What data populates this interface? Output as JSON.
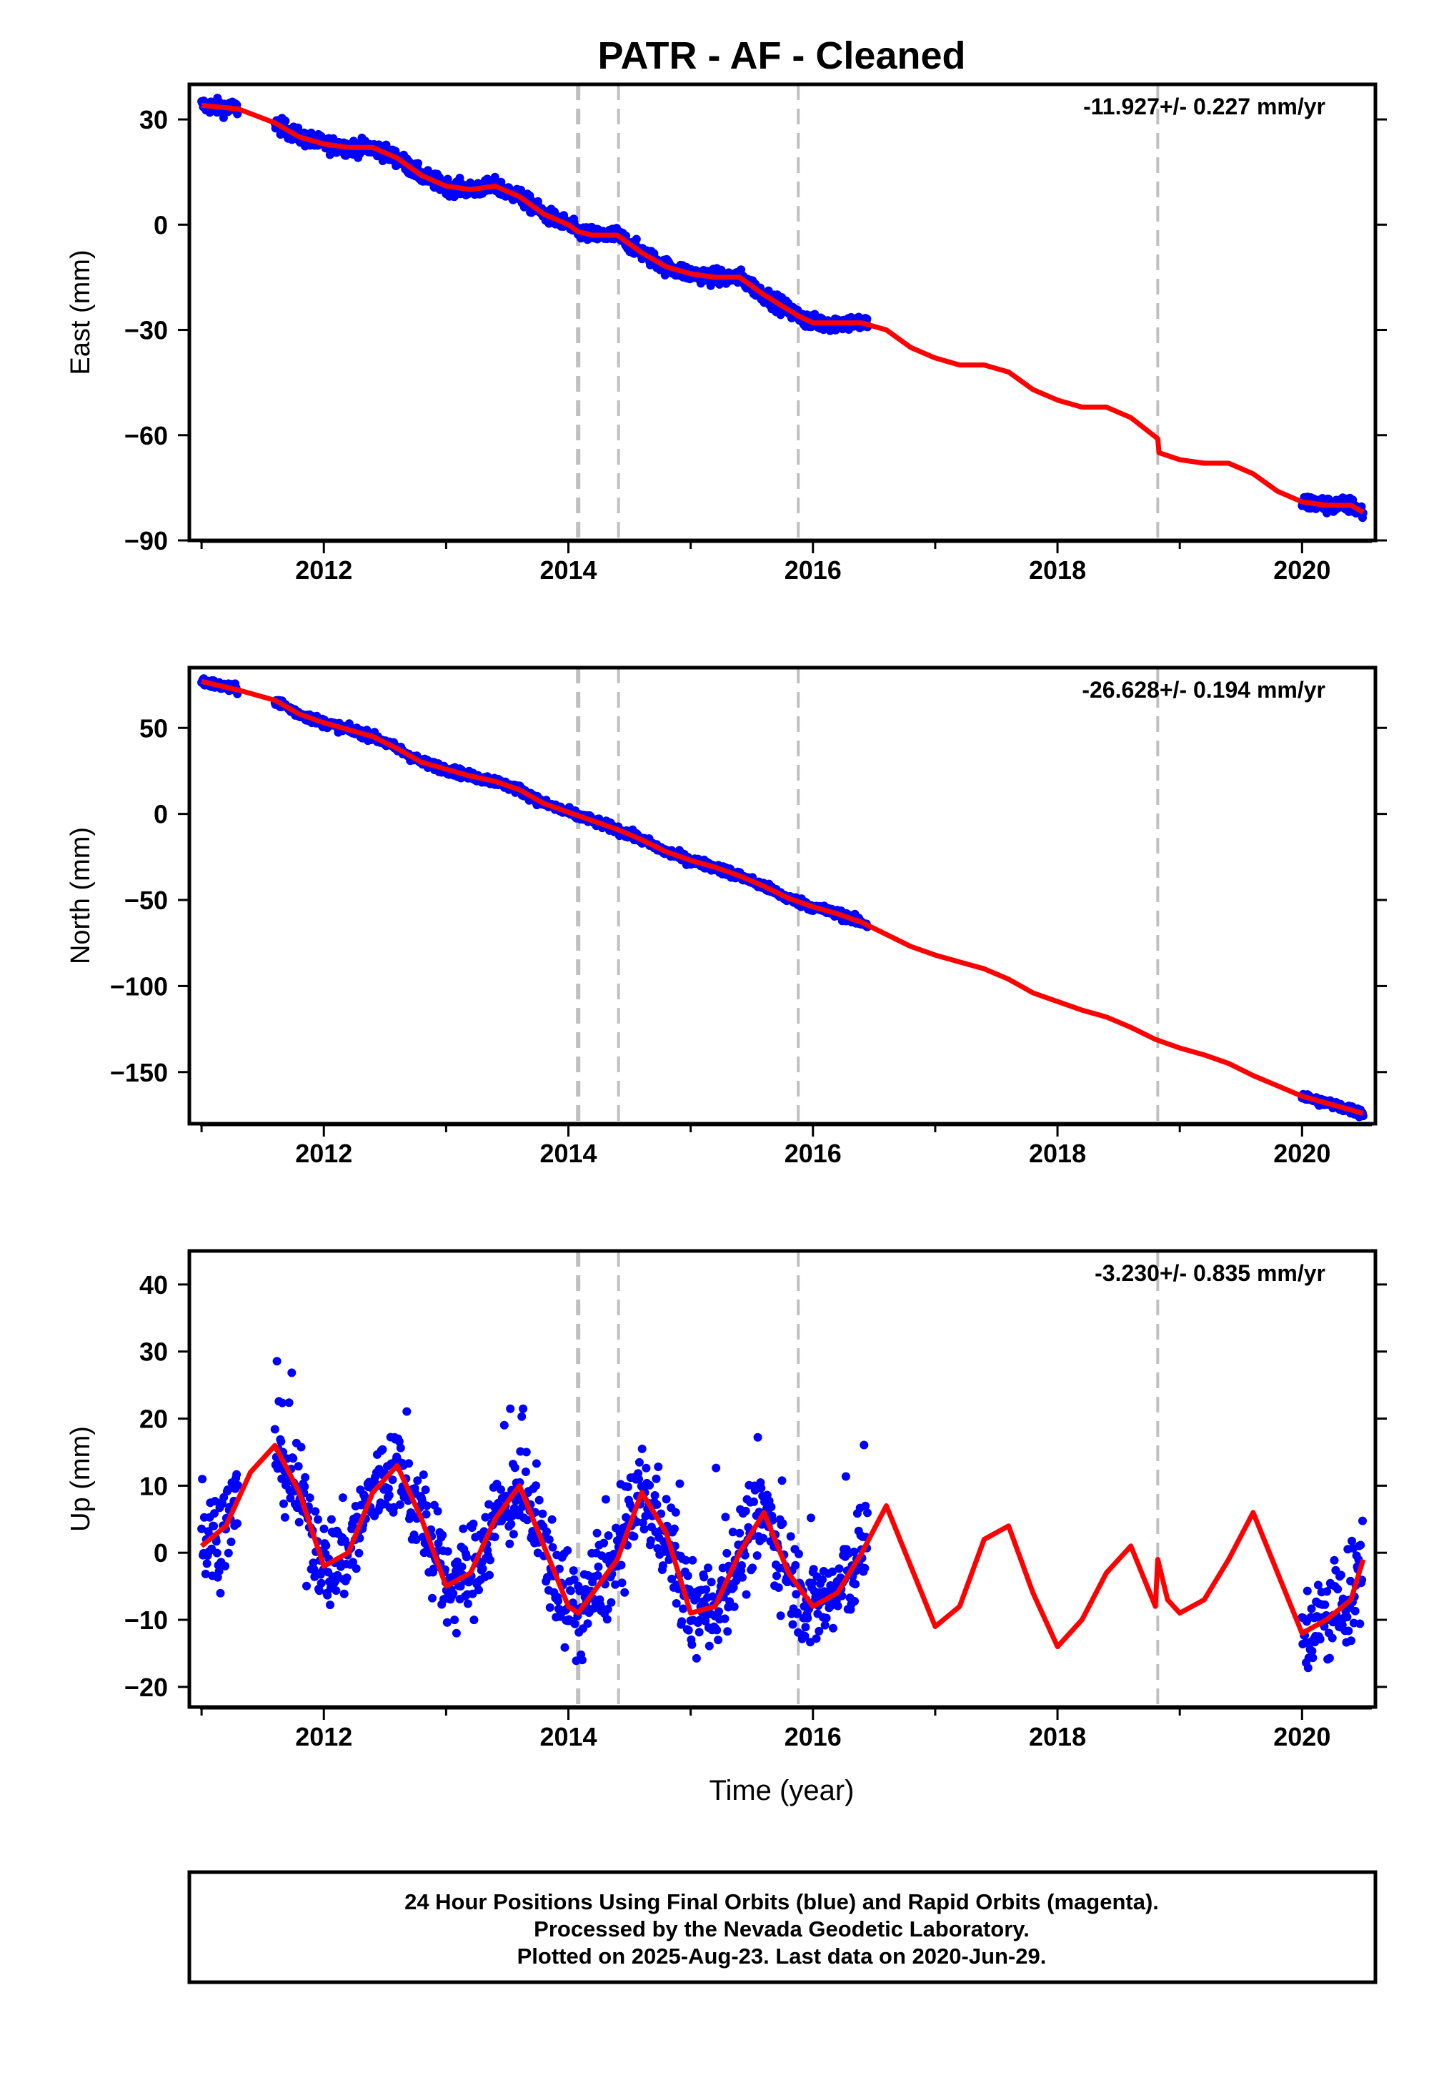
{
  "title": "PATR  - AF - Cleaned",
  "xlabel": "Time (year)",
  "footer": {
    "line1": "24 Hour Positions Using Final Orbits (blue) and Rapid Orbits (magenta).",
    "line2": "Processed by the Nevada Geodetic Laboratory.",
    "line3": "Plotted on 2025-Aug-23. Last data on 2020-Jun-29."
  },
  "colors": {
    "points": "#0000ff",
    "model": "#ff0000",
    "event_lines": "#c0c0c0",
    "frame": "#000000"
  },
  "chart_data": [
    {
      "type": "scatter",
      "ylabel": "East (mm)",
      "rate_label": "-11.927+/- 0.227 mm/yr",
      "xlim": [
        2010.9,
        2020.6
      ],
      "ylim": [
        -90,
        40
      ],
      "xticks": [
        2012,
        2014,
        2016,
        2018,
        2020
      ],
      "yticks": [
        30,
        0,
        -30,
        -60,
        -90
      ],
      "event_lines": [
        2014.08,
        2014.41,
        2015.88,
        2018.82
      ],
      "model_line": {
        "x": [
          2011.0,
          2011.3,
          2011.6,
          2011.8,
          2012.0,
          2012.2,
          2012.4,
          2012.6,
          2012.8,
          2013.0,
          2013.2,
          2013.4,
          2013.6,
          2013.8,
          2014.0,
          2014.08,
          2014.2,
          2014.4,
          2014.6,
          2014.8,
          2015.0,
          2015.2,
          2015.4,
          2015.6,
          2015.88,
          2016.0,
          2016.2,
          2016.4,
          2016.6,
          2016.8,
          2017.0,
          2017.2,
          2017.4,
          2017.6,
          2017.8,
          2018.0,
          2018.2,
          2018.4,
          2018.6,
          2018.82,
          2018.83,
          2019.0,
          2019.2,
          2019.4,
          2019.6,
          2019.8,
          2020.0,
          2020.2,
          2020.4,
          2020.5
        ],
        "y": [
          34,
          33,
          29,
          25,
          23,
          22,
          22,
          19,
          14,
          11,
          10,
          11,
          8,
          3,
          0,
          -2,
          -3,
          -3,
          -8,
          -12,
          -14,
          -15,
          -15,
          -20,
          -26,
          -28,
          -28,
          -28,
          -30,
          -35,
          -38,
          -40,
          -40,
          -42,
          -47,
          -50,
          -52,
          -52,
          -55,
          -61,
          -65,
          -67,
          -68,
          -68,
          -71,
          -76,
          -79,
          -80,
          -80,
          -82
        ]
      },
      "segments": [
        {
          "start": 2011.0,
          "end": 2011.3
        },
        {
          "start": 2011.6,
          "end": 2016.45
        },
        {
          "start": 2020.0,
          "end": 2020.5
        }
      ],
      "scatter_noise": 1.6
    },
    {
      "type": "scatter",
      "ylabel": "North (mm)",
      "rate_label": "-26.628+/- 0.194 mm/yr",
      "xlim": [
        2010.9,
        2020.6
      ],
      "ylim": [
        -180,
        85
      ],
      "xticks": [
        2012,
        2014,
        2016,
        2018,
        2020
      ],
      "yticks": [
        50,
        0,
        -50,
        -100,
        -150
      ],
      "event_lines": [
        2014.08,
        2014.41,
        2015.88,
        2018.82
      ],
      "model_line": {
        "x": [
          2011.0,
          2011.3,
          2011.6,
          2011.8,
          2012.0,
          2012.2,
          2012.4,
          2012.6,
          2012.8,
          2013.0,
          2013.2,
          2013.4,
          2013.6,
          2013.8,
          2014.0,
          2014.2,
          2014.4,
          2014.6,
          2014.8,
          2015.0,
          2015.2,
          2015.4,
          2015.6,
          2015.8,
          2016.0,
          2016.2,
          2016.4,
          2016.6,
          2016.8,
          2017.0,
          2017.2,
          2017.4,
          2017.6,
          2017.8,
          2018.0,
          2018.2,
          2018.4,
          2018.6,
          2018.8,
          2019.0,
          2019.2,
          2019.4,
          2019.6,
          2019.8,
          2020.0,
          2020.2,
          2020.4,
          2020.5
        ],
        "y": [
          77,
          72,
          66,
          58,
          53,
          49,
          45,
          38,
          30,
          26,
          22,
          19,
          14,
          6,
          1,
          -4,
          -9,
          -15,
          -22,
          -27,
          -31,
          -36,
          -42,
          -49,
          -54,
          -58,
          -63,
          -70,
          -77,
          -82,
          -86,
          -90,
          -96,
          -104,
          -109,
          -114,
          -118,
          -124,
          -131,
          -136,
          -140,
          -145,
          -152,
          -158,
          -164,
          -168,
          -172,
          -174
        ]
      },
      "segments": [
        {
          "start": 2011.0,
          "end": 2011.3
        },
        {
          "start": 2011.6,
          "end": 2016.45
        },
        {
          "start": 2020.0,
          "end": 2020.5
        }
      ],
      "scatter_noise": 1.8
    },
    {
      "type": "scatter",
      "ylabel": "Up (mm)",
      "rate_label": "-3.230+/- 0.835 mm/yr",
      "xlim": [
        2010.9,
        2020.6
      ],
      "ylim": [
        -23,
        45
      ],
      "xticks": [
        2012,
        2014,
        2016,
        2018,
        2020
      ],
      "yticks": [
        40,
        30,
        20,
        10,
        0,
        -10,
        -20
      ],
      "event_lines": [
        2014.08,
        2014.41,
        2015.88,
        2018.82
      ],
      "model_line": {
        "x": [
          2011.0,
          2011.2,
          2011.4,
          2011.6,
          2011.8,
          2012.0,
          2012.2,
          2012.4,
          2012.6,
          2012.8,
          2013.0,
          2013.2,
          2013.4,
          2013.6,
          2013.8,
          2014.0,
          2014.08,
          2014.2,
          2014.4,
          2014.6,
          2014.8,
          2015.0,
          2015.2,
          2015.4,
          2015.6,
          2015.8,
          2016.0,
          2016.2,
          2016.4,
          2016.6,
          2016.8,
          2017.0,
          2017.2,
          2017.4,
          2017.6,
          2017.8,
          2018.0,
          2018.2,
          2018.4,
          2018.6,
          2018.8,
          2018.82,
          2018.9,
          2019.0,
          2019.2,
          2019.4,
          2019.6,
          2019.8,
          2020.0,
          2020.2,
          2020.4,
          2020.5
        ],
        "y": [
          1,
          4,
          12,
          16,
          9,
          -2,
          0,
          9,
          13,
          5,
          -5,
          -3,
          5,
          10,
          1,
          -8,
          -9,
          -6,
          -1,
          9,
          3,
          -9,
          -8,
          0,
          6,
          -3,
          -8,
          -6,
          0,
          7,
          -2,
          -11,
          -8,
          2,
          4,
          -6,
          -14,
          -10,
          -3,
          1,
          -8,
          -1,
          -7,
          -9,
          -7,
          -1,
          6,
          -3,
          -12,
          -10,
          -7,
          -1
        ]
      },
      "segments": [
        {
          "start": 2011.0,
          "end": 2011.3
        },
        {
          "start": 2011.6,
          "end": 2016.45
        },
        {
          "start": 2020.0,
          "end": 2020.5
        }
      ],
      "scatter_noise": 5.0
    }
  ]
}
